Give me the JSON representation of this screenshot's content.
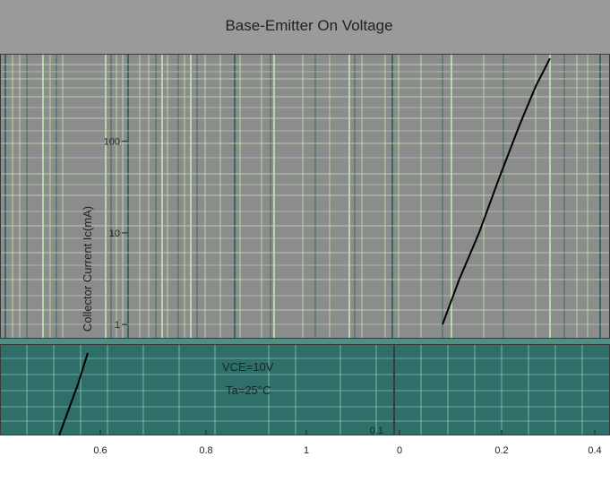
{
  "chart_data": [
    {
      "type": "line",
      "title": "Base-Emitter On Voltage",
      "ylabel": "Collector Current Ic(mA)",
      "xlabel": "",
      "yscale": "log",
      "ylim": [
        0.7,
        900
      ],
      "xlim": [
        0.4,
        1.2
      ],
      "y_ticks": [
        1,
        10,
        100
      ],
      "series": [
        {
          "x": [
            0.62,
            0.7,
            0.8,
            0.9,
            1.0,
            1.08,
            1.15
          ],
          "y": [
            1,
            3,
            10,
            40,
            150,
            400,
            800
          ]
        }
      ],
      "colors": {
        "line": "#000000",
        "background": "#8c8c8c",
        "grid_light": "#bfe3b2",
        "grid_dark": "#2f5f5a"
      }
    },
    {
      "type": "line",
      "annotations": [
        "VCE=10V",
        "Ta=25°C"
      ],
      "yscale": "log",
      "ylim": [
        0.1,
        1
      ],
      "xlim": [
        0.4,
        1.2
      ],
      "x_ticks": [
        "0.6",
        "0.8",
        "1"
      ],
      "y_ticks": [
        0.1
      ],
      "series": [
        {
          "x": [
            0.53,
            0.6,
            0.64
          ],
          "y": [
            0.1,
            0.35,
            0.8
          ]
        }
      ],
      "colors": {
        "line": "#000000",
        "background": "#2f6f6a"
      }
    },
    {
      "type": "line",
      "yscale": "log",
      "ylim": [
        0.1,
        1
      ],
      "xlim": [
        0,
        0.4
      ],
      "x_ticks": [
        "0",
        "0.2",
        "0.4"
      ],
      "y_ticks": [
        0.1
      ],
      "colors": {
        "background": "#2f6f6a"
      }
    }
  ]
}
